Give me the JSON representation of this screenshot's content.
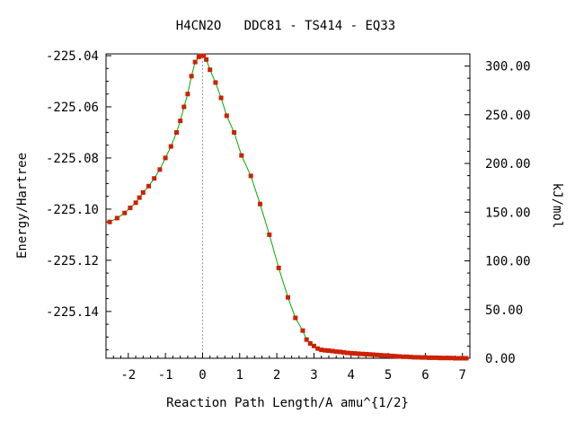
{
  "chart_data": {
    "type": "line",
    "title": "H4CN2O   DDC81 - TS414 - EQ33",
    "xlabel": "Reaction Path Length/A amu^{1/2}",
    "ylabel": "Energy/Hartree",
    "y2label": "kJ/mol",
    "xlim": [
      -2.6,
      7.2
    ],
    "ylim": [
      -225.1583,
      -225.0393
    ],
    "y2lim": [
      0,
      312.5
    ],
    "x_ticks": [
      "-2",
      "-1",
      "0",
      "1",
      "2",
      "3",
      "4",
      "5",
      "6",
      "7"
    ],
    "y_ticks": [
      "-225.04",
      "-225.06",
      "-225.08",
      "-225.10",
      "-225.12",
      "-225.14"
    ],
    "y2_ticks": [
      "0.00",
      "50.00",
      "100.00",
      "150.00",
      "200.00",
      "250.00",
      "300.00"
    ],
    "ts_x": 0.0,
    "grid": false,
    "line_color": "#00aa00",
    "marker_color": "#cc2200",
    "dash_color": "#999999",
    "series": [
      {
        "x": [
          -2.5,
          -2.3,
          -2.1,
          -1.95,
          -1.8,
          -1.7,
          -1.6,
          -1.45,
          -1.3,
          -1.15,
          -1.0,
          -0.85,
          -0.7,
          -0.6,
          -0.5,
          -0.4,
          -0.3,
          -0.2,
          -0.1,
          -0.03,
          0.03,
          0.1,
          0.2,
          0.35,
          0.5,
          0.65,
          0.85,
          1.05,
          1.3,
          1.55,
          1.8,
          2.05,
          2.3,
          2.5,
          2.7,
          2.8,
          2.9,
          3.0,
          3.1,
          3.2,
          3.3,
          3.4,
          3.5,
          3.6,
          3.7,
          3.8,
          3.9,
          4.0,
          4.1,
          4.2,
          4.3,
          4.4,
          4.5,
          4.6,
          4.7,
          4.8,
          4.9,
          5.0,
          5.1,
          5.2,
          5.3,
          5.4,
          5.5,
          5.6,
          5.7,
          5.8,
          5.9,
          6.0,
          6.1,
          6.2,
          6.3,
          6.4,
          6.5,
          6.6,
          6.7,
          6.8,
          6.9,
          7.0,
          7.1
        ],
        "y": [
          -225.105,
          -225.1035,
          -225.1015,
          -225.0995,
          -225.0975,
          -225.0955,
          -225.0935,
          -225.091,
          -225.088,
          -225.0845,
          -225.08,
          -225.0755,
          -225.07,
          -225.0655,
          -225.06,
          -225.055,
          -225.048,
          -225.0425,
          -225.0405,
          -225.04,
          -225.04,
          -225.0415,
          -225.0455,
          -225.0505,
          -225.0565,
          -225.0635,
          -225.07,
          -225.079,
          -225.087,
          -225.098,
          -225.11,
          -225.123,
          -225.1345,
          -225.1425,
          -225.1475,
          -225.151,
          -225.1525,
          -225.1535,
          -225.1545,
          -225.155,
          -225.1552,
          -225.1553,
          -225.1555,
          -225.1557,
          -225.1558,
          -225.156,
          -225.1562,
          -225.1563,
          -225.1564,
          -225.1565,
          -225.1566,
          -225.1567,
          -225.1568,
          -225.1569,
          -225.157,
          -225.1571,
          -225.1572,
          -225.1573,
          -225.1574,
          -225.1575,
          -225.1576,
          -225.1577,
          -225.1577,
          -225.1578,
          -225.1579,
          -225.1579,
          -225.158,
          -225.158,
          -225.1581,
          -225.1581,
          -225.1581,
          -225.1582,
          -225.1582,
          -225.1582,
          -225.1582,
          -225.1583,
          -225.1583,
          -225.1583,
          -225.1583
        ]
      }
    ]
  }
}
